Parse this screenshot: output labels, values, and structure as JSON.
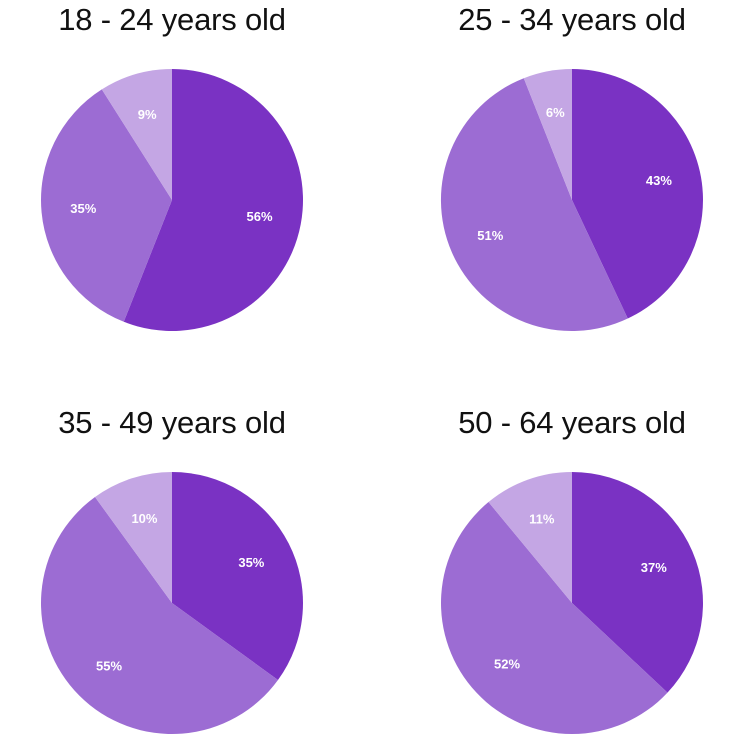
{
  "colors": {
    "series": [
      "#7a32c3",
      "#9c6cd3",
      "#c4a6e4"
    ],
    "label": "#ffffff",
    "title": "#111111"
  },
  "chart_data": [
    {
      "type": "pie",
      "title": "18 - 24 years old",
      "slices": [
        {
          "value": 56,
          "label": "56%"
        },
        {
          "value": 35,
          "label": "35%"
        },
        {
          "value": 9,
          "label": "9%"
        }
      ]
    },
    {
      "type": "pie",
      "title": "25 - 34 years old",
      "slices": [
        {
          "value": 43,
          "label": "43%"
        },
        {
          "value": 51,
          "label": "51%"
        },
        {
          "value": 6,
          "label": "6%"
        }
      ]
    },
    {
      "type": "pie",
      "title": "35 - 49 years old",
      "slices": [
        {
          "value": 35,
          "label": "35%"
        },
        {
          "value": 55,
          "label": "55%"
        },
        {
          "value": 10,
          "label": "10%"
        }
      ]
    },
    {
      "type": "pie",
      "title": "50 - 64 years old",
      "slices": [
        {
          "value": 37,
          "label": "37%"
        },
        {
          "value": 52,
          "label": "52%"
        },
        {
          "value": 11,
          "label": "11%"
        }
      ]
    }
  ]
}
